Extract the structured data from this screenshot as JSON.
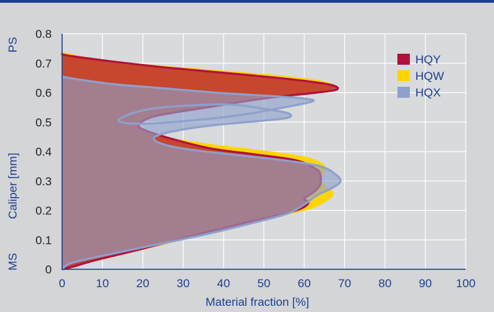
{
  "chart_data": {
    "type": "area",
    "orientation": "horizontal",
    "title": "",
    "xlabel": "Material fraction [%]",
    "ylabel": "Caliper [mm]",
    "side_labels": {
      "top": "PS",
      "bottom": "MS"
    },
    "xlim": [
      0,
      100
    ],
    "ylim": [
      0,
      0.8
    ],
    "x_ticks": [
      0,
      10,
      20,
      30,
      40,
      50,
      60,
      70,
      80,
      90,
      100
    ],
    "y_ticks": [
      0,
      0.1,
      0.2,
      0.3,
      0.4,
      0.5,
      0.6,
      0.7,
      0.8
    ],
    "grid": true,
    "legend": "top-right",
    "series": [
      {
        "name": "HQW",
        "color": "#ffd400",
        "points": [
          [
            0,
            0
          ],
          [
            3,
            0.01
          ],
          [
            8,
            0.03
          ],
          [
            20,
            0.07
          ],
          [
            35,
            0.12
          ],
          [
            47,
            0.16
          ],
          [
            56,
            0.19
          ],
          [
            62,
            0.21
          ],
          [
            66,
            0.24
          ],
          [
            67,
            0.26
          ],
          [
            65,
            0.28
          ],
          [
            64,
            0.31
          ],
          [
            65,
            0.34
          ],
          [
            64,
            0.36
          ],
          [
            60,
            0.38
          ],
          [
            50,
            0.4
          ],
          [
            38,
            0.42
          ],
          [
            28,
            0.44
          ],
          [
            22,
            0.46
          ],
          [
            19,
            0.48
          ],
          [
            22,
            0.52
          ],
          [
            36,
            0.55
          ],
          [
            50,
            0.58
          ],
          [
            62,
            0.6
          ],
          [
            67,
            0.62
          ],
          [
            63,
            0.64
          ],
          [
            50,
            0.66
          ],
          [
            32,
            0.68
          ],
          [
            15,
            0.7
          ],
          [
            5,
            0.72
          ],
          [
            0,
            0.735
          ]
        ]
      },
      {
        "name": "HQY",
        "color": "#b0103a",
        "points": [
          [
            0,
            0
          ],
          [
            3,
            0.01
          ],
          [
            8,
            0.03
          ],
          [
            20,
            0.07
          ],
          [
            34,
            0.12
          ],
          [
            46,
            0.16
          ],
          [
            54,
            0.185
          ],
          [
            59,
            0.205
          ],
          [
            61,
            0.225
          ],
          [
            60,
            0.24
          ],
          [
            61,
            0.25
          ],
          [
            63,
            0.27
          ],
          [
            64,
            0.29
          ],
          [
            64,
            0.32
          ],
          [
            63,
            0.34
          ],
          [
            58,
            0.37
          ],
          [
            48,
            0.39
          ],
          [
            37,
            0.41
          ],
          [
            28,
            0.44
          ],
          [
            21,
            0.47
          ],
          [
            19,
            0.49
          ],
          [
            23,
            0.52
          ],
          [
            36,
            0.55
          ],
          [
            50,
            0.58
          ],
          [
            63,
            0.6
          ],
          [
            68,
            0.61
          ],
          [
            67,
            0.625
          ],
          [
            60,
            0.64
          ],
          [
            46,
            0.66
          ],
          [
            26,
            0.685
          ],
          [
            10,
            0.71
          ],
          [
            2,
            0.725
          ],
          [
            0,
            0.73
          ]
        ]
      },
      {
        "name": "HQX",
        "color": "#8ea0cc",
        "points": [
          [
            0,
            0
          ],
          [
            2,
            0.02
          ],
          [
            8,
            0.04
          ],
          [
            22,
            0.08
          ],
          [
            36,
            0.12
          ],
          [
            48,
            0.16
          ],
          [
            56,
            0.19
          ],
          [
            60,
            0.22
          ],
          [
            63,
            0.25
          ],
          [
            66,
            0.27
          ],
          [
            68,
            0.285
          ],
          [
            69,
            0.3
          ],
          [
            68,
            0.32
          ],
          [
            64,
            0.35
          ],
          [
            55,
            0.37
          ],
          [
            42,
            0.39
          ],
          [
            30,
            0.41
          ],
          [
            24,
            0.43
          ],
          [
            23,
            0.45
          ],
          [
            28,
            0.47
          ],
          [
            38,
            0.49
          ],
          [
            50,
            0.505
          ],
          [
            56,
            0.515
          ],
          [
            56,
            0.53
          ],
          [
            50,
            0.545
          ],
          [
            40,
            0.56
          ],
          [
            22,
            0.545
          ],
          [
            14,
            0.505
          ],
          [
            22,
            0.495
          ],
          [
            42,
            0.52
          ],
          [
            55,
            0.55
          ],
          [
            62,
            0.57
          ],
          [
            60,
            0.58
          ],
          [
            50,
            0.59
          ],
          [
            38,
            0.6
          ],
          [
            25,
            0.615
          ],
          [
            12,
            0.63
          ],
          [
            4,
            0.645
          ],
          [
            1,
            0.652
          ],
          [
            0,
            0.655
          ]
        ]
      }
    ],
    "legend_order": [
      "HQY",
      "HQW",
      "HQX"
    ],
    "axis_color": "#1e3f8f"
  }
}
